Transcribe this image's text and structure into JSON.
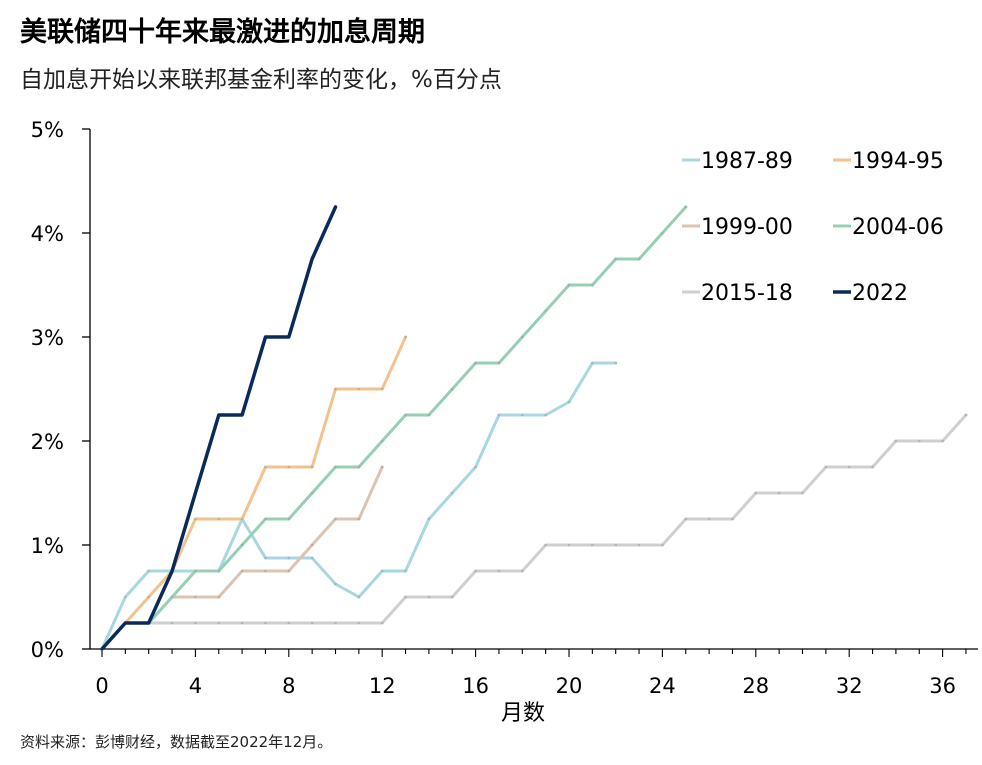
{
  "title": "美联储四十年来最激进的加息周期",
  "subtitle": "自加息开始以来联邦基金利率的变化，%百分点",
  "source": "资料来源：彭博财经，数据截至2022年12月。",
  "chart_data": {
    "type": "line",
    "xlabel": "月数",
    "ylabel": "",
    "xlim": [
      0,
      37
    ],
    "ylim": [
      0,
      5
    ],
    "x_ticks": [
      0,
      4,
      8,
      12,
      16,
      20,
      24,
      28,
      32,
      36
    ],
    "y_ticks": [
      0,
      1,
      2,
      3,
      4,
      5
    ],
    "y_tick_labels": [
      "0%",
      "1%",
      "2%",
      "3%",
      "4%",
      "5%"
    ],
    "legend_position": "top-right",
    "grid": false,
    "series": [
      {
        "name": "1987-89",
        "color": "#a9d7e0",
        "x": [
          0,
          1,
          2,
          3,
          4,
          5,
          6,
          7,
          8,
          9,
          10,
          11,
          12,
          13,
          14,
          15,
          16,
          17,
          18,
          19,
          20,
          21,
          22
        ],
        "values": [
          0,
          0.5,
          0.75,
          0.75,
          0.75,
          0.75,
          1.25,
          0.875,
          0.875,
          0.875,
          0.625,
          0.5,
          0.75,
          0.75,
          1.25,
          1.5,
          1.75,
          2.25,
          2.25,
          2.25,
          2.375,
          2.75,
          2.75
        ]
      },
      {
        "name": "1994-95",
        "color": "#f2c28f",
        "x": [
          0,
          1,
          2,
          3,
          4,
          5,
          6,
          7,
          8,
          9,
          10,
          11,
          12,
          13
        ],
        "values": [
          0,
          0.25,
          0.5,
          0.75,
          1.25,
          1.25,
          1.25,
          1.75,
          1.75,
          1.75,
          2.5,
          2.5,
          2.5,
          3.0
        ]
      },
      {
        "name": "1999-00",
        "color": "#dcc3b2",
        "x": [
          0,
          1,
          2,
          3,
          4,
          5,
          6,
          7,
          8,
          9,
          10,
          11,
          12
        ],
        "values": [
          0,
          0.25,
          0.25,
          0.5,
          0.5,
          0.5,
          0.75,
          0.75,
          0.75,
          1.0,
          1.25,
          1.25,
          1.75
        ]
      },
      {
        "name": "2004-06",
        "color": "#97cfb4",
        "x": [
          0,
          1,
          2,
          3,
          4,
          5,
          6,
          7,
          8,
          9,
          10,
          11,
          12,
          13,
          14,
          15,
          16,
          17,
          18,
          19,
          20,
          21,
          22,
          23,
          24,
          25
        ],
        "values": [
          0,
          0.25,
          0.25,
          0.5,
          0.75,
          0.75,
          1.0,
          1.25,
          1.25,
          1.5,
          1.75,
          1.75,
          2.0,
          2.25,
          2.25,
          2.5,
          2.75,
          2.75,
          3.0,
          3.25,
          3.5,
          3.5,
          3.75,
          3.75,
          4.0,
          4.25
        ]
      },
      {
        "name": "2015-18",
        "color": "#cfcfcf",
        "x": [
          0,
          1,
          2,
          3,
          4,
          5,
          6,
          7,
          8,
          9,
          10,
          11,
          12,
          13,
          14,
          15,
          16,
          17,
          18,
          19,
          20,
          21,
          22,
          23,
          24,
          25,
          26,
          27,
          28,
          29,
          30,
          31,
          32,
          33,
          34,
          35,
          36,
          37
        ],
        "values": [
          0,
          0.25,
          0.25,
          0.25,
          0.25,
          0.25,
          0.25,
          0.25,
          0.25,
          0.25,
          0.25,
          0.25,
          0.25,
          0.5,
          0.5,
          0.5,
          0.75,
          0.75,
          0.75,
          1.0,
          1.0,
          1.0,
          1.0,
          1.0,
          1.0,
          1.25,
          1.25,
          1.25,
          1.5,
          1.5,
          1.5,
          1.75,
          1.75,
          1.75,
          2.0,
          2.0,
          2.0,
          2.25
        ]
      },
      {
        "name": "2022",
        "color": "#0a2a5c",
        "x": [
          0,
          1,
          2,
          3,
          4,
          5,
          6,
          7,
          8,
          9,
          10
        ],
        "values": [
          0,
          0.25,
          0.25,
          0.75,
          1.5,
          2.25,
          2.25,
          3.0,
          3.0,
          3.75,
          4.25
        ]
      }
    ]
  }
}
